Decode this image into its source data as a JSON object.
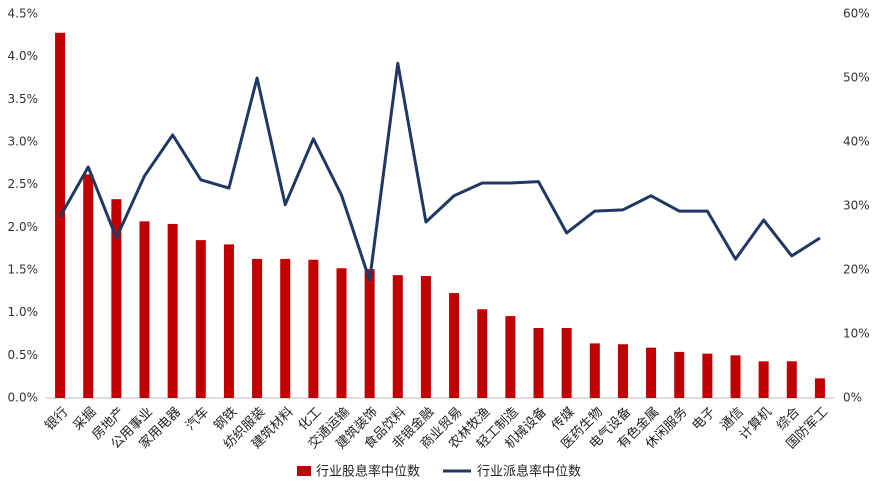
{
  "chart_data": {
    "type": "combo",
    "categories": [
      "银行",
      "采掘",
      "房地产",
      "公用事业",
      "家用电器",
      "汽车",
      "钢铁",
      "纺织服装",
      "建筑材料",
      "化工",
      "交通运输",
      "建筑装饰",
      "食品饮料",
      "非银金融",
      "商业贸易",
      "农林牧渔",
      "轻工制造",
      "机械设备",
      "传媒",
      "医药生物",
      "电气设备",
      "有色金属",
      "休闲服务",
      "电子",
      "通信",
      "计算机",
      "综合",
      "国防军工"
    ],
    "series": [
      {
        "name": "行业股息率中位数",
        "type": "bar",
        "color": "#c00000",
        "values": [
          4.28,
          2.62,
          2.33,
          2.07,
          2.04,
          1.85,
          1.8,
          1.63,
          1.63,
          1.62,
          1.52,
          1.51,
          1.44,
          1.43,
          1.23,
          1.04,
          0.96,
          0.82,
          0.82,
          0.64,
          0.63,
          0.59,
          0.54,
          0.52,
          0.5,
          0.43,
          0.43,
          0.23
        ]
      },
      {
        "name": "行业派息率中位数",
        "type": "line",
        "axis": "y2",
        "color": "#1f3864",
        "values": [
          28.3,
          36.1,
          25.0,
          34.7,
          41.1,
          34.1,
          32.8,
          50.0,
          30.2,
          40.5,
          31.7,
          18.4,
          52.3,
          27.5,
          31.6,
          33.6,
          33.6,
          33.8,
          25.8,
          29.2,
          29.4,
          31.6,
          29.2,
          29.2,
          21.7,
          27.8,
          22.2,
          25.0
        ]
      }
    ],
    "ylim": [
      0,
      4.5
    ],
    "yticks": [
      {
        "value": 0,
        "label": "0.0%"
      },
      {
        "value": 0.5,
        "label": "0.5%"
      },
      {
        "value": 1,
        "label": "1.0%"
      },
      {
        "value": 1.5,
        "label": "1.5%"
      },
      {
        "value": 2,
        "label": "2.0%"
      },
      {
        "value": 2.5,
        "label": "2.5%"
      },
      {
        "value": 3,
        "label": "3.0%"
      },
      {
        "value": 3.5,
        "label": "3.5%"
      },
      {
        "value": 4,
        "label": "4.0%"
      },
      {
        "value": 4.5,
        "label": "4.5%"
      }
    ],
    "y2lim": [
      0,
      60
    ],
    "y2ticks": [
      {
        "value": 0,
        "label": "0%"
      },
      {
        "value": 10,
        "label": "10%"
      },
      {
        "value": 20,
        "label": "20%"
      },
      {
        "value": 30,
        "label": "30%"
      },
      {
        "value": 40,
        "label": "40%"
      },
      {
        "value": 50,
        "label": "50%"
      },
      {
        "value": 60,
        "label": "60%"
      }
    ],
    "grid": false,
    "legend": "bottom"
  }
}
